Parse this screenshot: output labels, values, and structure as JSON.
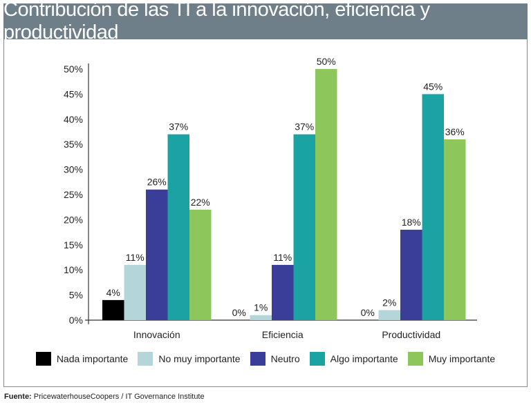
{
  "chart_data": {
    "type": "bar",
    "title": "Contribución de las TI a la innovación, eficiencia y productividad",
    "categories": [
      "Innovación",
      "Eficiencia",
      "Productividad"
    ],
    "series": [
      {
        "name": "Nada importante",
        "color": "#000000",
        "values": [
          4,
          0,
          0
        ],
        "labels": [
          "4%",
          "0%",
          "0%"
        ]
      },
      {
        "name": "No muy importante",
        "color": "#b4d6da",
        "values": [
          11,
          1,
          2
        ],
        "labels": [
          "11%",
          "1%",
          "2%"
        ]
      },
      {
        "name": "Neutro",
        "color": "#3b3e98",
        "values": [
          26,
          11,
          18
        ],
        "labels": [
          "26%",
          "11%",
          "18%"
        ]
      },
      {
        "name": "Algo importante",
        "color": "#1ba3a3",
        "values": [
          37,
          37,
          45
        ],
        "labels": [
          "37%",
          "37%",
          "45%"
        ]
      },
      {
        "name": "Muy importante",
        "color": "#8dc75b",
        "values": [
          22,
          50,
          36
        ],
        "labels": [
          "22%",
          "50%",
          "36%"
        ]
      }
    ],
    "ylim": [
      0,
      50
    ],
    "yticks": [
      "0%",
      "5%",
      "10%",
      "15%",
      "20%",
      "25%",
      "30%",
      "35%",
      "40%",
      "45%",
      "50%"
    ],
    "grid": false,
    "legend": "bottom"
  },
  "source": {
    "label": "Fuente:",
    "text": "PricewaterhouseCoopers / IT Governance Institute"
  }
}
